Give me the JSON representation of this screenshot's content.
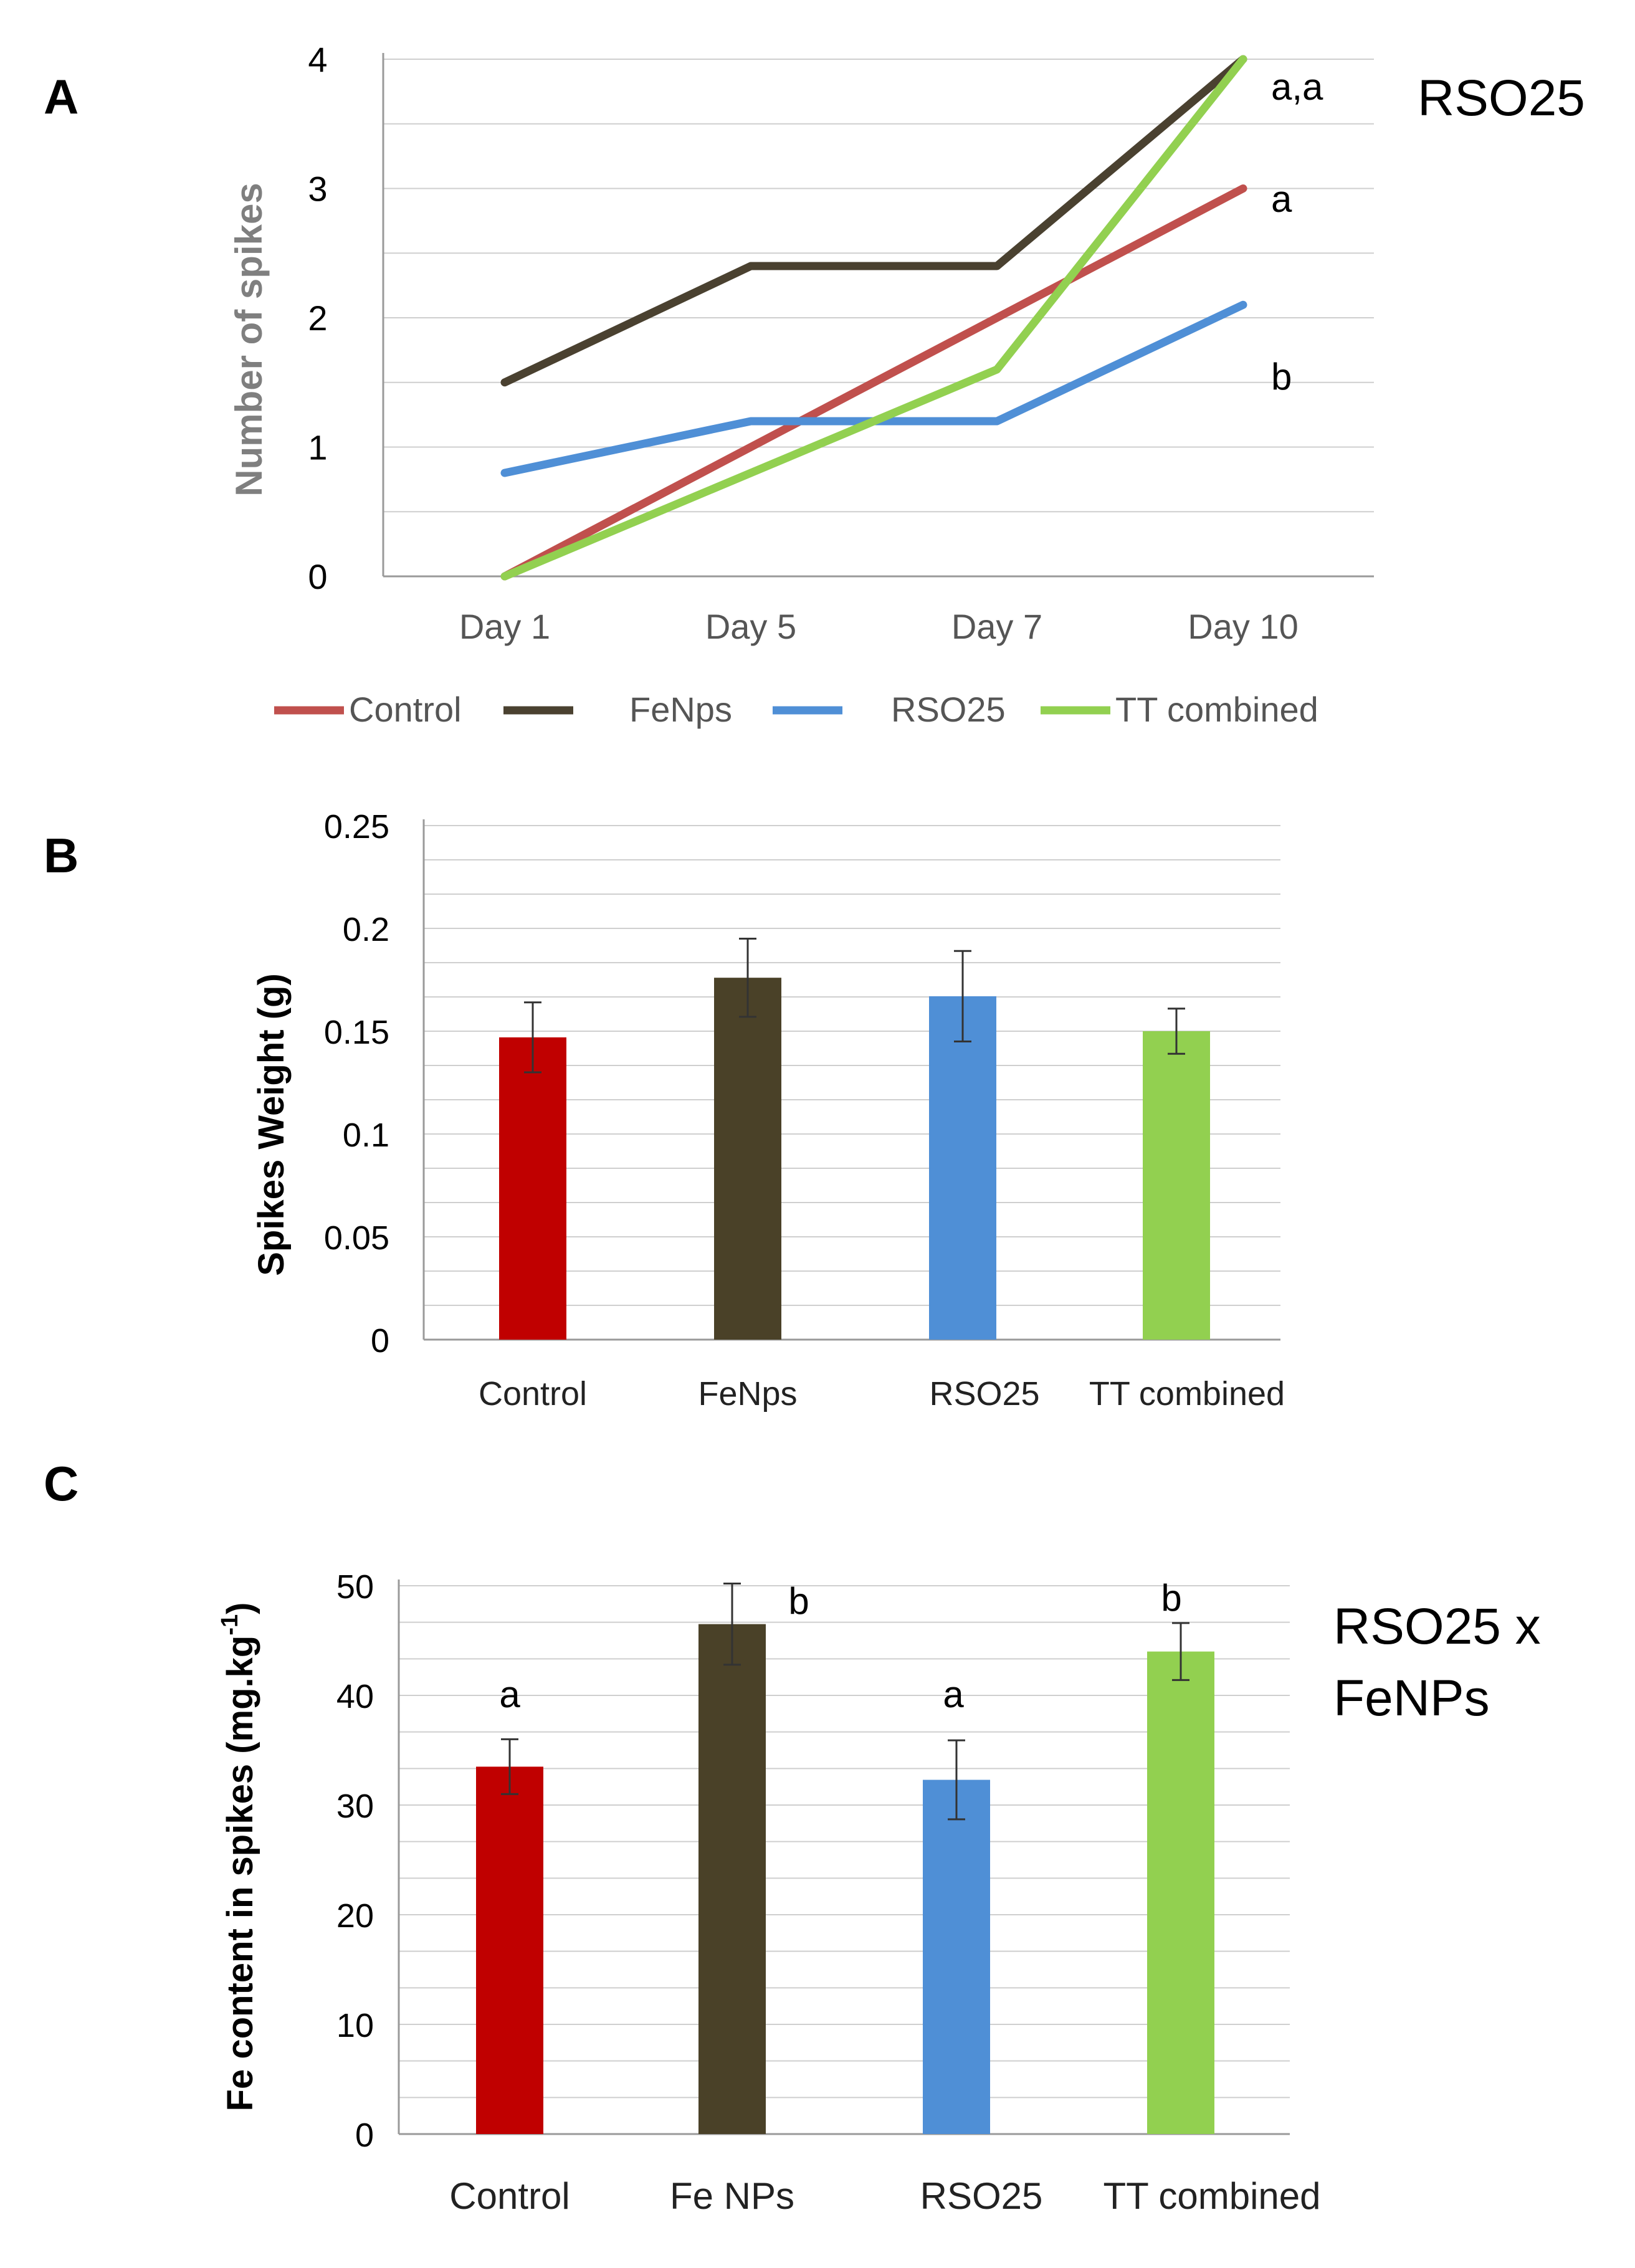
{
  "chart_data": [
    {
      "panel": "A",
      "type": "line",
      "corner_label": "RSO25",
      "xlabel": "",
      "ylabel": "Number of spikes",
      "ylim": [
        0,
        4
      ],
      "yticks": [
        "0",
        "1",
        "2",
        "3",
        "4"
      ],
      "categories": [
        "Day 1",
        "Day 5",
        "Day 7",
        "Day 10"
      ],
      "series": [
        {
          "name": "Control",
          "color": "#c0504d",
          "values": [
            0,
            1,
            2,
            3
          ]
        },
        {
          "name": "FeNps",
          "color": "#4a4130",
          "values": [
            1.5,
            2.4,
            2.4,
            4
          ]
        },
        {
          "name": "RSO25",
          "color": "#4f8fd6",
          "values": [
            0.8,
            1.2,
            1.2,
            2.1
          ]
        },
        {
          "name": "TT combined",
          "color": "#92d050",
          "values": [
            0,
            0.8,
            1.6,
            4
          ]
        }
      ],
      "annotations": [
        {
          "text": "a,a",
          "at_value": 4
        },
        {
          "text": "a",
          "at_value": 3
        },
        {
          "text": "b",
          "at_value": 1.6
        }
      ]
    },
    {
      "panel": "B",
      "type": "bar",
      "xlabel": "",
      "ylabel": "Spikes Weight (g)",
      "ylim": [
        0,
        0.25
      ],
      "yticks": [
        "0",
        "0.05",
        "0.1",
        "0.15",
        "0.2",
        "0.25"
      ],
      "categories": [
        "Control",
        "FeNps",
        "RSO25",
        "TT combined"
      ],
      "values": [
        0.147,
        0.176,
        0.167,
        0.15
      ],
      "errors": [
        0.017,
        0.019,
        0.022,
        0.011
      ],
      "colors": [
        "#c00000",
        "#4a4128",
        "#4f8fd6",
        "#92d050"
      ]
    },
    {
      "panel": "C",
      "type": "bar",
      "corner_label_lines": [
        "RSO25 x",
        "FeNPs"
      ],
      "xlabel": "",
      "ylabel": "Fe content in spikes (mg.kg",
      "ylabel_sup": "-1",
      "ylabel_end": ")",
      "ylim": [
        0,
        50
      ],
      "yticks": [
        "0",
        "10",
        "20",
        "30",
        "40",
        "50"
      ],
      "categories": [
        "Control",
        "Fe NPs",
        "RSO25",
        "TT combined"
      ],
      "values": [
        33.5,
        46.5,
        32.3,
        44
      ],
      "errors": [
        2.5,
        3.7,
        3.6,
        2.6
      ],
      "letters": [
        "a",
        "b",
        "a",
        "b"
      ],
      "colors": [
        "#c00000",
        "#4a4128",
        "#4f8fd6",
        "#92d050"
      ]
    }
  ]
}
